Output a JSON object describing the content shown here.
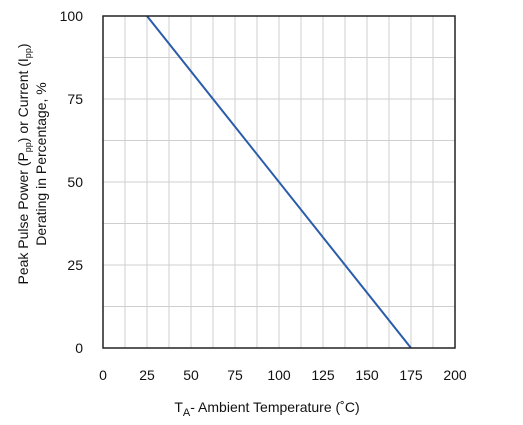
{
  "chart_data": {
    "type": "line",
    "title": "",
    "xlabel": {
      "main": "T",
      "sub": "A",
      "rest": "- Ambient Temperature (˚C)"
    },
    "ylabel": {
      "line1": {
        "pre": "Peak Pulse Power (P",
        "sub1": "pp",
        "mid": ") or Current (I",
        "sub2": "pp",
        "post": ")"
      },
      "line2": "Derating in Percentage, %"
    },
    "xlim": [
      0,
      200
    ],
    "ylim": [
      0,
      100
    ],
    "xticks": [
      "0",
      "25",
      "50",
      "75",
      "100",
      "125",
      "150",
      "175",
      "200"
    ],
    "yticks": [
      "0",
      "25",
      "50",
      "75",
      "100"
    ],
    "grid": true,
    "series": [
      {
        "x": [
          25,
          175
        ],
        "y": [
          100,
          0
        ],
        "color": "#2a5caa"
      }
    ]
  }
}
